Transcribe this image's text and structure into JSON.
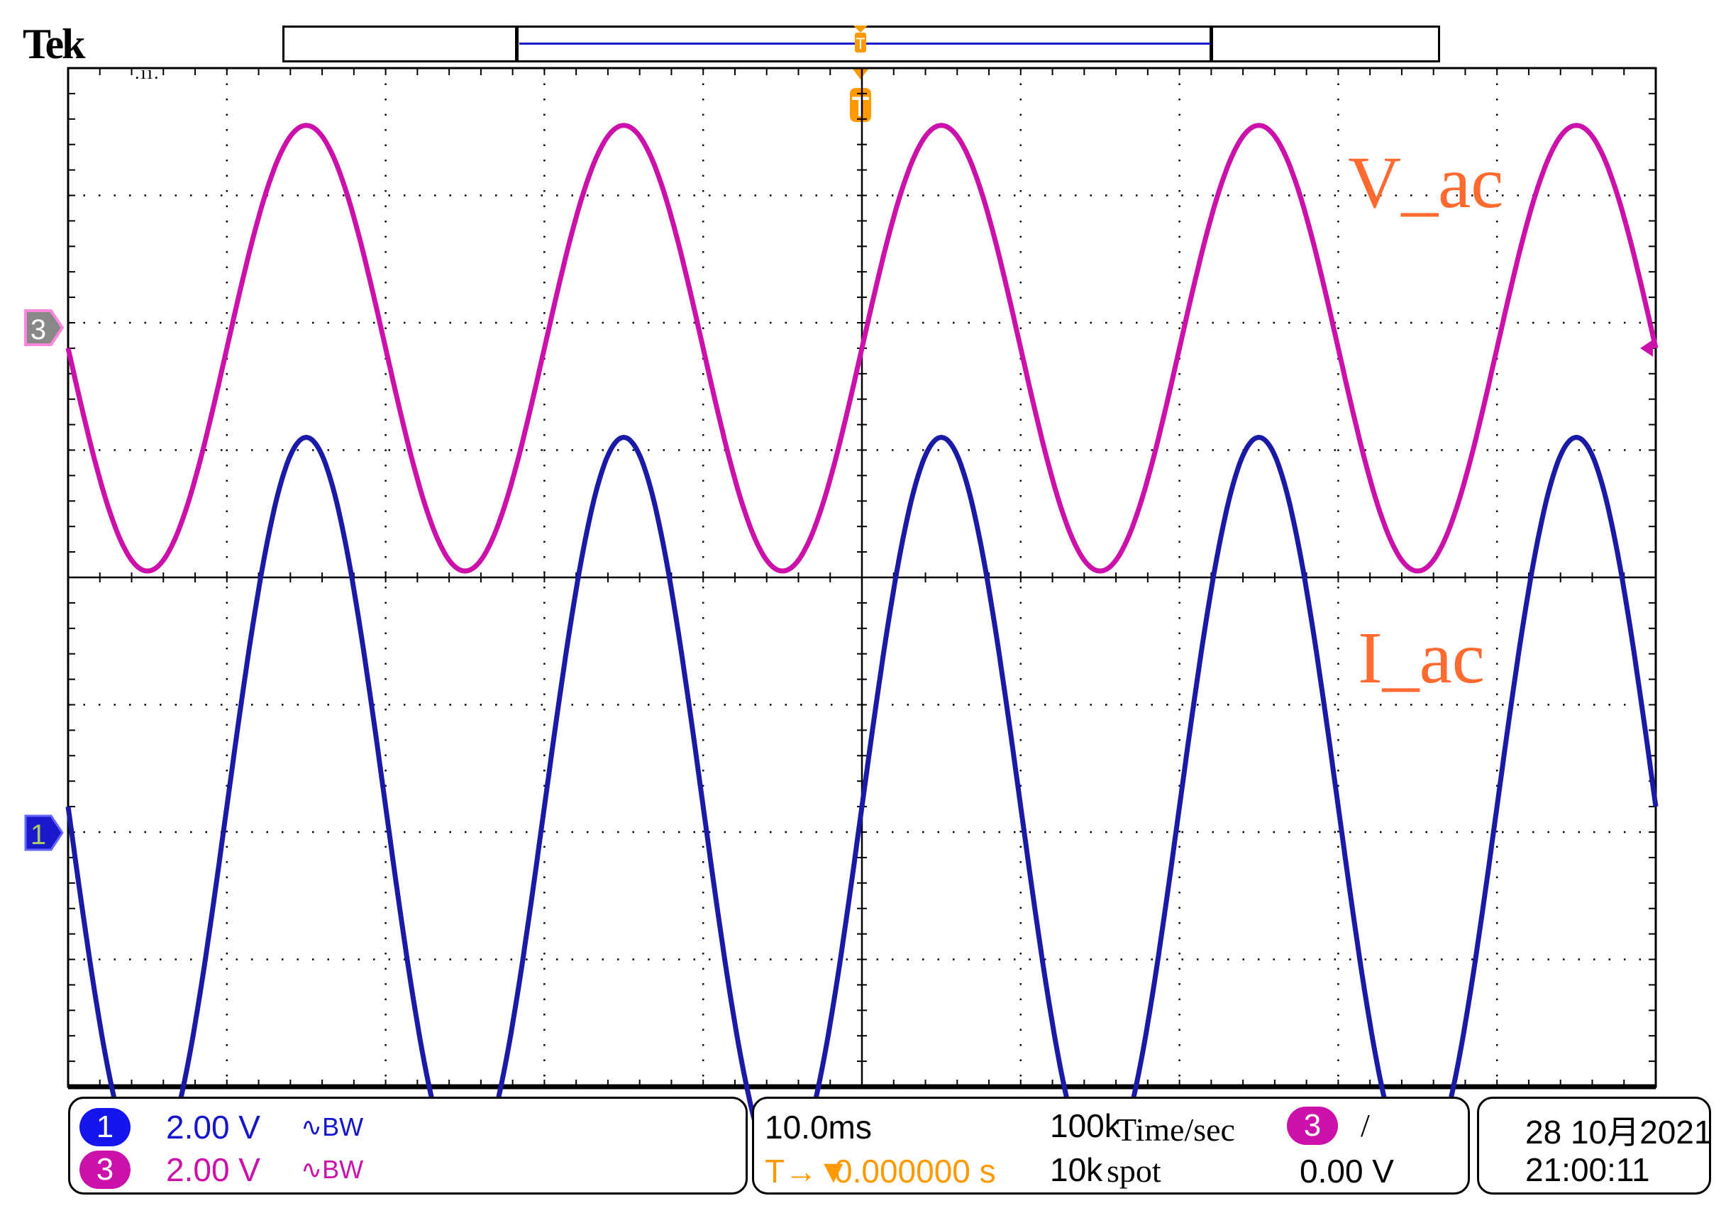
{
  "header": {
    "brand": "Tek"
  },
  "trigger": {
    "marker_letter": "T",
    "color": "#ff9900"
  },
  "chart_data": {
    "type": "line",
    "title": "",
    "grid": true,
    "x_divisions": 10,
    "y_divisions": 8,
    "timebase_ms_per_div": 10.0,
    "x_range_ms": [
      0,
      100
    ],
    "series": [
      {
        "name": "V_ac",
        "channel": "3",
        "color": "#cc11aa",
        "label_color": "#ff6a30",
        "volts_per_div": 2.0,
        "period_ms": 20,
        "amplitude_div": 1.75,
        "phase": "starts at zero crossing, descending",
        "offset_div_from_center": 1.8
      },
      {
        "name": "I_ac",
        "channel": "1",
        "color": "#1a1aa6",
        "label_color": "#ff6a30",
        "volts_per_div": 2.0,
        "period_ms": 20,
        "amplitude_div": 2.9,
        "phase": "starts at zero crossing, descending",
        "offset_div_from_center": -1.8
      }
    ]
  },
  "status": {
    "channels": [
      {
        "badge": "1",
        "scale": "2.00 V",
        "bw": "∿BW",
        "color": "#1515cc",
        "badge_color": "#1515ee"
      },
      {
        "badge": "3",
        "scale": "2.00 V",
        "bw": "∿BW",
        "color": "#cc11aa",
        "badge_color": "#cc11aa"
      }
    ],
    "timebase": {
      "time_div": "10.0ms",
      "sample_rate": "100k",
      "sample_unit": "Time/sec",
      "record_length": "10k",
      "record_unit": "spot",
      "trigger_pos": "0.000000 s",
      "trigger_pos_prefix": "T→▼"
    },
    "trigger_info": {
      "source_badge": "3",
      "slope": "/",
      "level": "0.00 V"
    },
    "datetime": {
      "date": "28 10月2021",
      "time": "21:00:11"
    }
  }
}
